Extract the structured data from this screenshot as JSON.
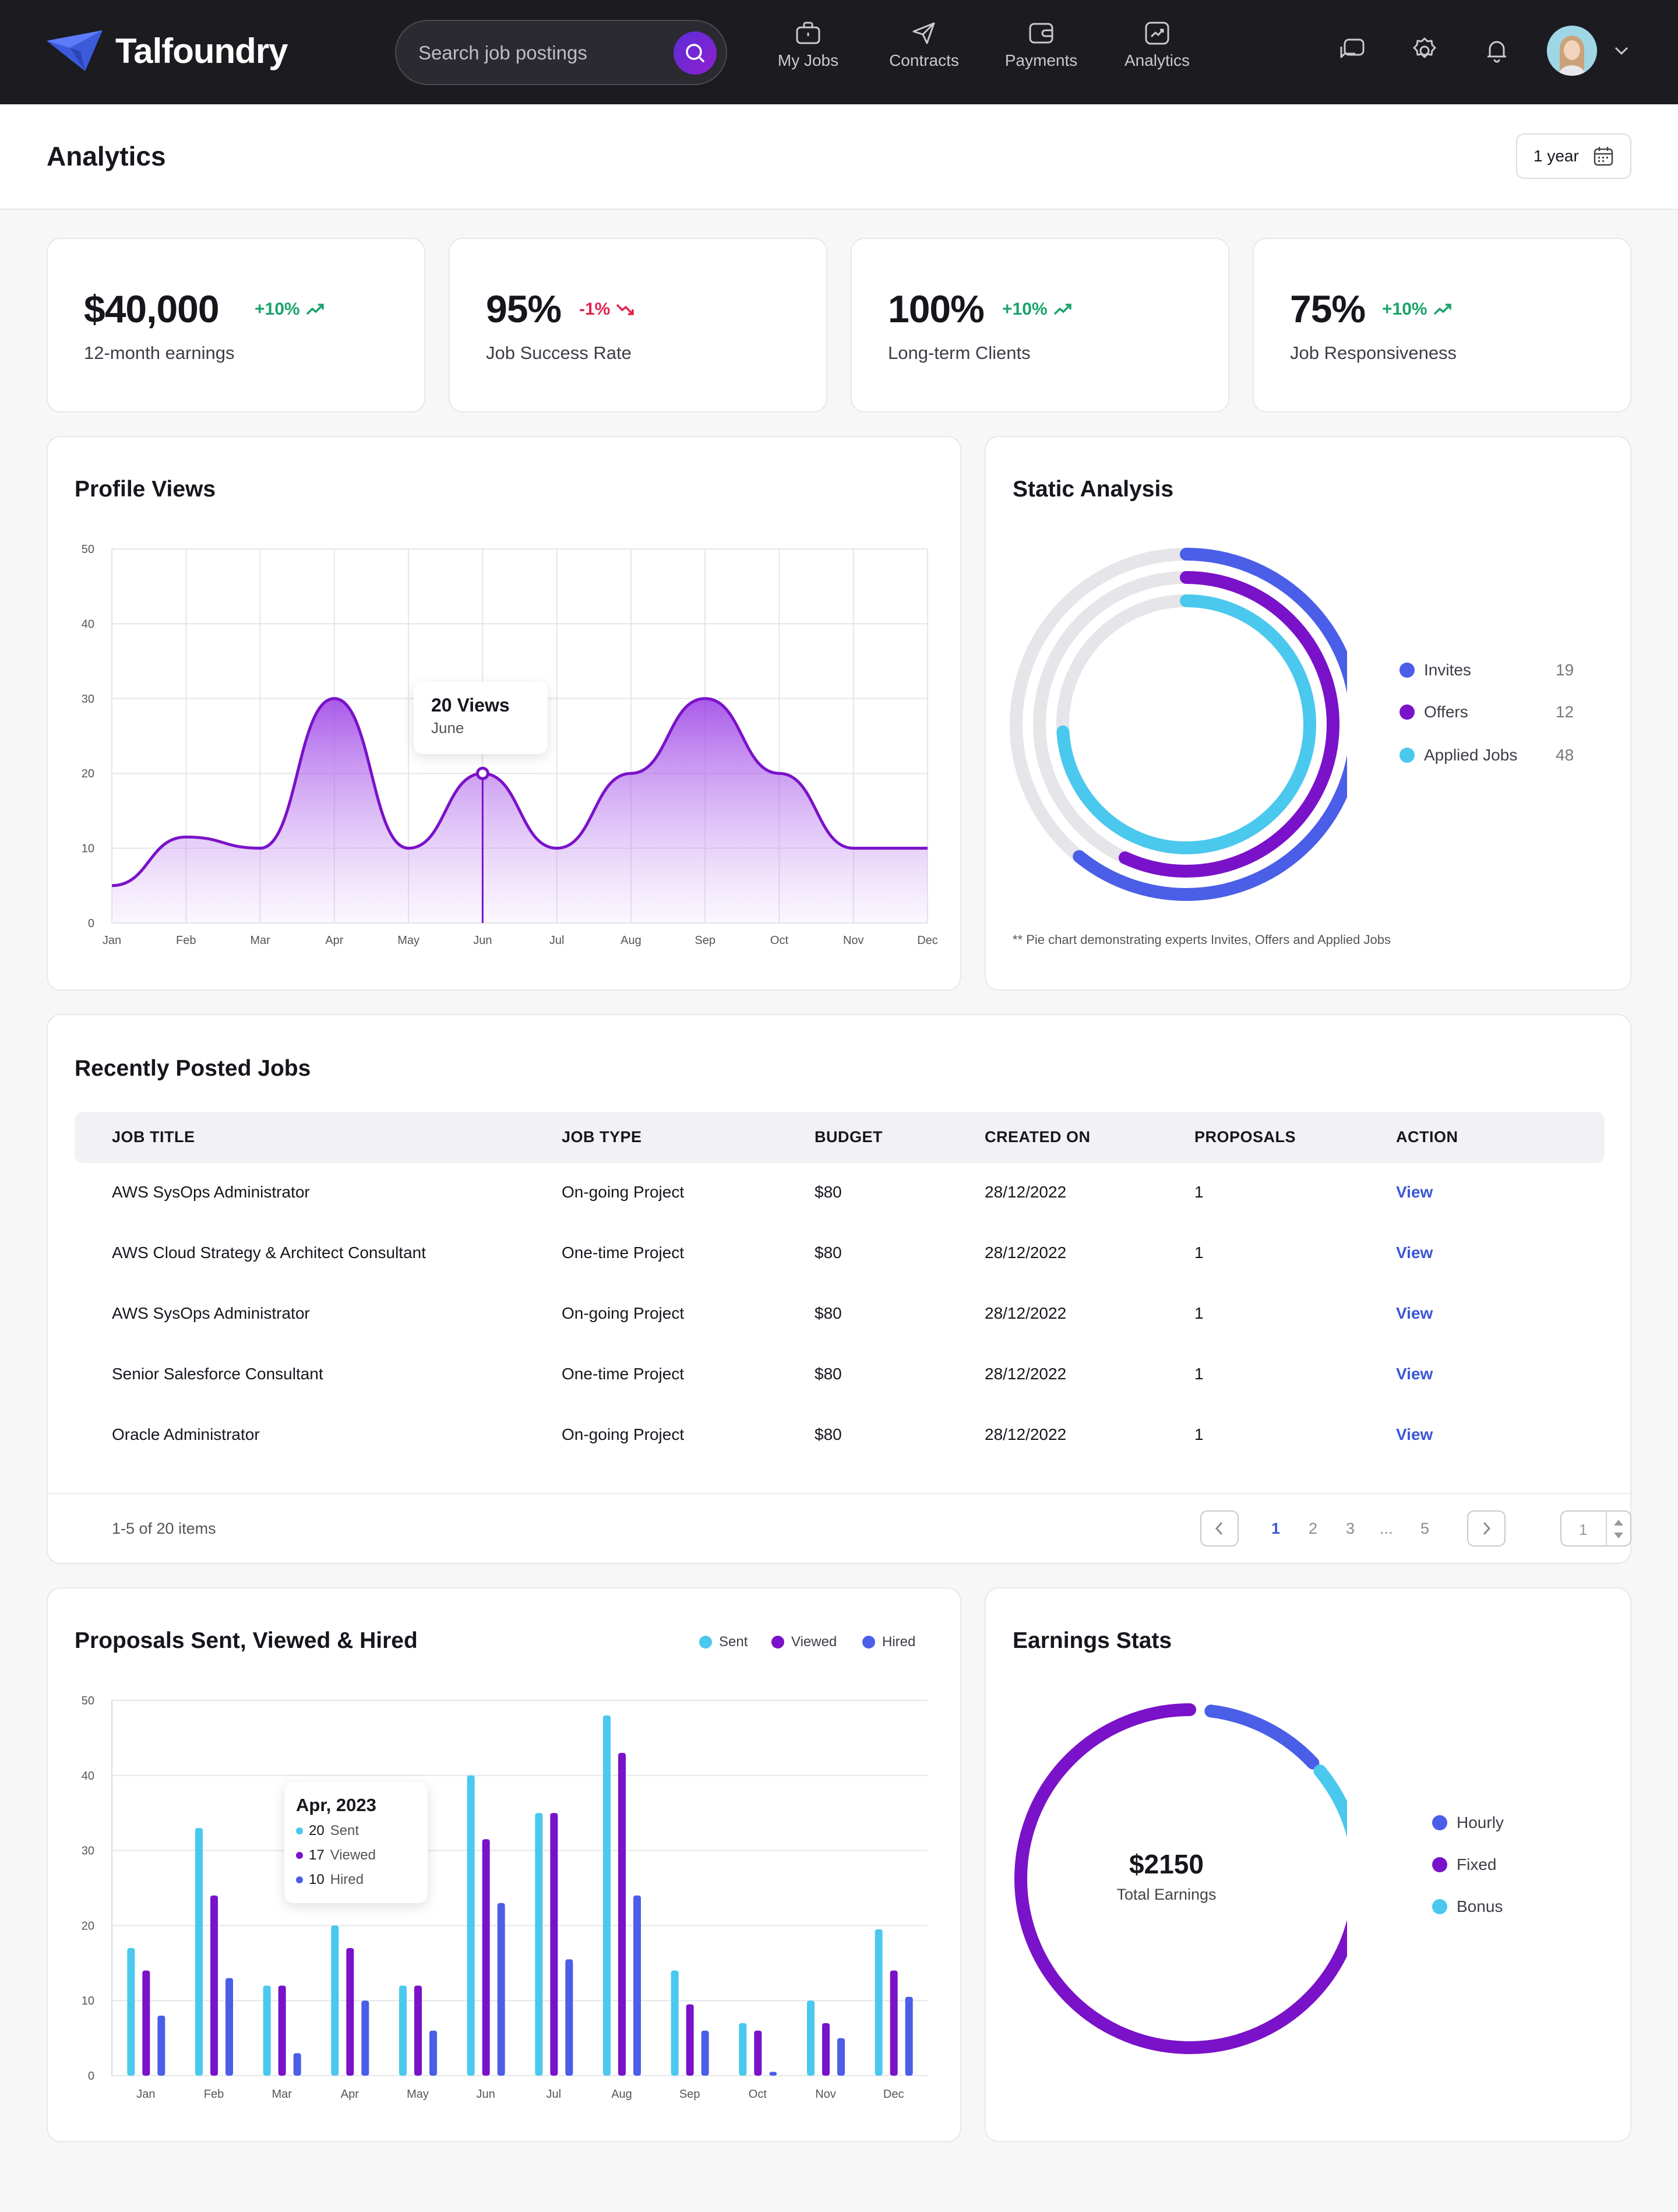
{
  "brand": {
    "name": "Talfoundry",
    "accent": "#3b5bdb"
  },
  "search": {
    "placeholder": "Search job postings"
  },
  "nav": [
    {
      "label": "My Jobs",
      "icon": "briefcase-icon"
    },
    {
      "label": "Contracts",
      "icon": "send-icon"
    },
    {
      "label": "Payments",
      "icon": "wallet-icon"
    },
    {
      "label": "Analytics",
      "icon": "chart-icon"
    }
  ],
  "page": {
    "title": "Analytics",
    "range": "1 year"
  },
  "stats": [
    {
      "value": "$40,000",
      "delta": "+10%",
      "direction": "up",
      "label": "12-month earnings"
    },
    {
      "value": "95%",
      "delta": "-1%",
      "direction": "down",
      "label": "Job Success Rate"
    },
    {
      "value": "100%",
      "delta": "+10%",
      "direction": "up",
      "label": "Long-term Clients"
    },
    {
      "value": "75%",
      "delta": "+10%",
      "direction": "up",
      "label": "Job Responsiveness"
    }
  ],
  "colors": {
    "up": "#1aa36a",
    "down": "#e0244f",
    "purple": "#7a12c9",
    "blue": "#4a5ee8",
    "cyan": "#4ac8ee",
    "track": "#e5e5ea"
  },
  "profile_views": {
    "title": "Profile Views",
    "tooltip": {
      "value": "20 Views",
      "month": "June"
    }
  },
  "static_analysis": {
    "title": "Static Analysis",
    "note": "** Pie chart demonstrating experts Invites, Offers and Applied Jobs",
    "items": [
      {
        "label": "Invites",
        "value": "19"
      },
      {
        "label": "Offers",
        "value": "12"
      },
      {
        "label": "Applied Jobs",
        "value": "48"
      }
    ]
  },
  "jobs": {
    "title": "Recently Posted Jobs",
    "columns": [
      "JOB TITLE",
      "JOB TYPE",
      "BUDGET",
      "CREATED ON",
      "PROPOSALS",
      "ACTION"
    ],
    "rows": [
      [
        "AWS SysOps Administrator",
        "On-going Project",
        "$80",
        "28/12/2022",
        "1",
        "View"
      ],
      [
        "AWS Cloud Strategy & Architect Consultant",
        "One-time Project",
        "$80",
        "28/12/2022",
        "1",
        "View"
      ],
      [
        "AWS SysOps Administrator",
        "On-going Project",
        "$80",
        "28/12/2022",
        "1",
        "View"
      ],
      [
        "Senior Salesforce Consultant",
        "One-time Project",
        "$80",
        "28/12/2022",
        "1",
        "View"
      ],
      [
        "Oracle Administrator",
        "On-going Project",
        "$80",
        "28/12/2022",
        "1",
        "View"
      ]
    ],
    "summary": "1-5 of 20 items",
    "pages": [
      "1",
      "2",
      "3",
      "...",
      "5"
    ],
    "page_input": "1"
  },
  "proposals": {
    "title": "Proposals Sent, Viewed & Hired",
    "legend": [
      "Sent",
      "Viewed",
      "Hired"
    ],
    "tooltip": {
      "title": "Apr, 2023",
      "lines": [
        {
          "value": "20",
          "label": "Sent"
        },
        {
          "value": "17",
          "label": "Viewed"
        },
        {
          "value": "10",
          "label": "Hired"
        }
      ]
    }
  },
  "earnings": {
    "title": "Earnings Stats",
    "total": "$2150",
    "total_label": "Total Earnings",
    "legend": [
      "Hourly",
      "Fixed",
      "Bonus"
    ]
  },
  "chart_data": [
    {
      "type": "area",
      "title": "Profile Views",
      "categories": [
        "Jan",
        "Feb",
        "Mar",
        "Apr",
        "May",
        "Jun",
        "Jul",
        "Aug",
        "Sep",
        "Oct",
        "Nov",
        "Dec"
      ],
      "values": [
        5,
        11.5,
        10,
        30,
        10,
        20,
        10,
        20,
        30,
        20,
        10,
        10
      ],
      "ylim": [
        0,
        50
      ],
      "yticks": [
        0,
        10,
        20,
        30,
        40,
        50
      ],
      "grid": true
    },
    {
      "type": "pie",
      "title": "Static Analysis",
      "series": [
        {
          "name": "Invites",
          "value": 19
        },
        {
          "name": "Offers",
          "value": 12
        },
        {
          "name": "Applied Jobs",
          "value": 48
        }
      ]
    },
    {
      "type": "bar",
      "title": "Proposals Sent, Viewed & Hired",
      "categories": [
        "Jan",
        "Feb",
        "Mar",
        "Apr",
        "May",
        "Jun",
        "Jul",
        "Aug",
        "Sep",
        "Oct",
        "Nov",
        "Dec"
      ],
      "series": [
        {
          "name": "Sent",
          "values": [
            17,
            33,
            12,
            20,
            12,
            40,
            35,
            48,
            14,
            7,
            10,
            19.5
          ]
        },
        {
          "name": "Viewed",
          "values": [
            14,
            24,
            12,
            17,
            12,
            31.5,
            35,
            43,
            9.5,
            6,
            7,
            14
          ]
        },
        {
          "name": "Hired",
          "values": [
            8,
            13,
            3,
            10,
            6,
            23,
            15.5,
            24,
            6,
            0.5,
            5,
            10.5
          ]
        }
      ],
      "ylim": [
        0,
        50
      ],
      "yticks": [
        0,
        10,
        20,
        30,
        40,
        50
      ],
      "legend": "top-right"
    },
    {
      "type": "pie",
      "title": "Earnings Stats",
      "series": [
        {
          "name": "Hourly",
          "value": 12
        },
        {
          "name": "Fixed",
          "value": 80
        },
        {
          "name": "Bonus",
          "value": 8
        }
      ]
    }
  ]
}
